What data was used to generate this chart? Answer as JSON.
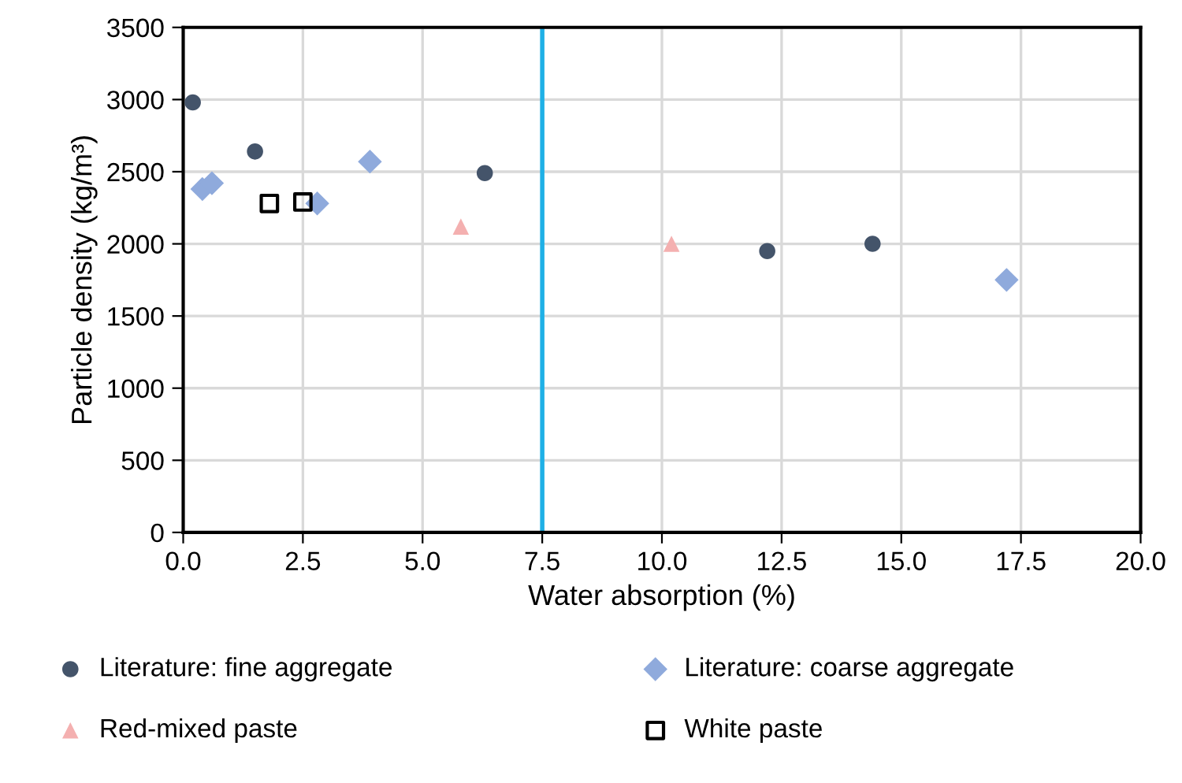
{
  "chart_data": {
    "type": "scatter",
    "xlabel": "Water absorption (%)",
    "ylabel": "Particle density (kg/m³)",
    "xlim": [
      0,
      20
    ],
    "xticks": [
      {
        "value": 0,
        "label": "0.0"
      },
      {
        "value": 2.5,
        "label": "2.5"
      },
      {
        "value": 5,
        "label": "5.0"
      },
      {
        "value": 7.5,
        "label": "7.5"
      },
      {
        "value": 10,
        "label": "10.0"
      },
      {
        "value": 12.5,
        "label": "12.5"
      },
      {
        "value": 15,
        "label": "15.0"
      },
      {
        "value": 17.5,
        "label": "17.5"
      },
      {
        "value": 20,
        "label": "20.0"
      }
    ],
    "ylim": [
      0,
      3500
    ],
    "yticks": [
      0,
      500,
      1000,
      1500,
      2000,
      2500,
      3000,
      3500
    ],
    "grid": true,
    "legend": "bottom",
    "ref_lines": [
      {
        "axis": "x",
        "value": 7.5,
        "color": "#1fb0e6"
      }
    ],
    "series": [
      {
        "name": "Literature: fine aggregate",
        "color": "#44546a",
        "marker": "circle",
        "x": [
          0.2,
          1.5,
          6.3,
          12.2,
          14.4
        ],
        "values": [
          2980,
          2640,
          2490,
          1950,
          2000
        ]
      },
      {
        "name": "Literature: coarse aggregate",
        "color": "#8faadc",
        "marker": "diamond",
        "x": [
          0.4,
          0.6,
          2.8,
          3.9,
          17.2
        ],
        "values": [
          2380,
          2420,
          2280,
          2570,
          1750
        ]
      },
      {
        "name": "Red-mixed paste",
        "color": "#f4b0b0",
        "marker": "triangle",
        "x": [
          5.8,
          10.2
        ],
        "values": [
          2120,
          2000
        ]
      },
      {
        "name": "White paste",
        "color": "#000000",
        "marker": "square",
        "x": [
          1.8,
          2.5
        ],
        "values": [
          2280,
          2290
        ]
      }
    ]
  }
}
